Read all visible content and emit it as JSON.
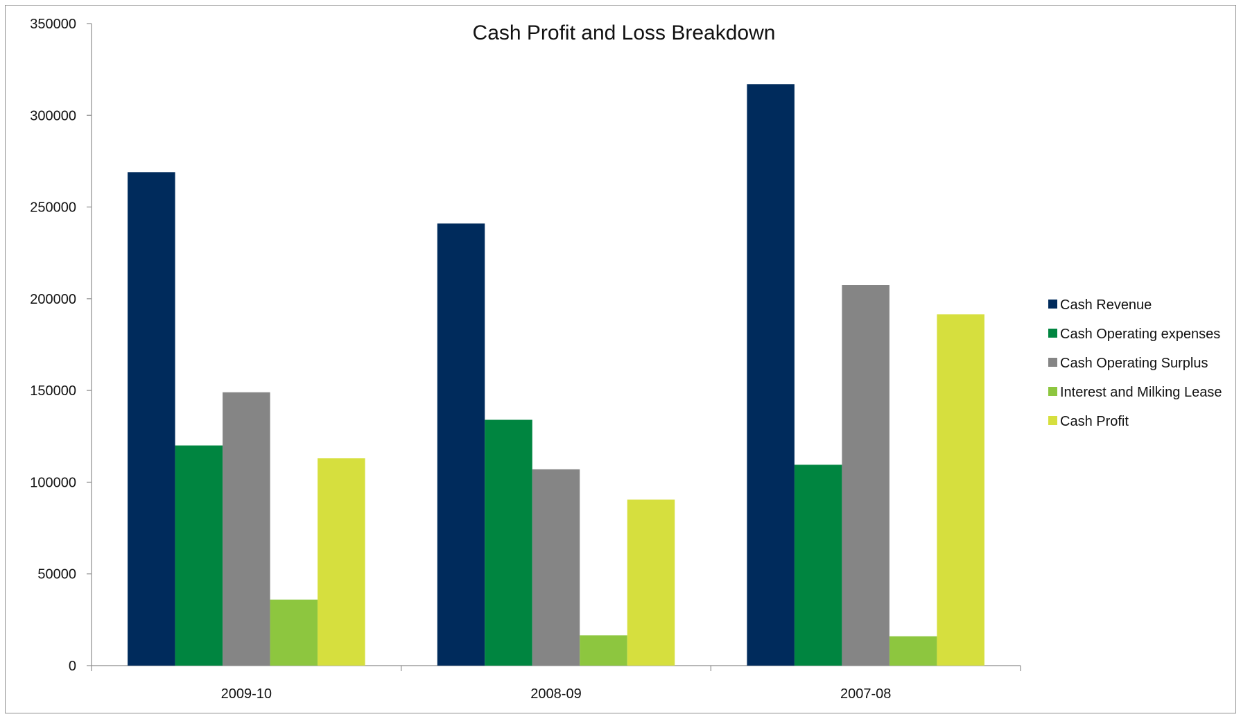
{
  "chart_data": {
    "type": "bar",
    "title": "Cash Profit and Loss Breakdown",
    "xlabel": "",
    "ylabel": "",
    "categories": [
      "2009-10",
      "2008-09",
      "2007-08"
    ],
    "ylim": [
      0,
      350000
    ],
    "yticks": [
      0,
      50000,
      100000,
      150000,
      200000,
      250000,
      300000,
      350000
    ],
    "grid": false,
    "legend_position": "right",
    "series": [
      {
        "name": "Cash Revenue",
        "color": "#002b5c",
        "values": [
          269000,
          241000,
          317000
        ]
      },
      {
        "name": "Cash Operating expenses",
        "color": "#008540",
        "values": [
          120000,
          134000,
          109500
        ]
      },
      {
        "name": "Cash Operating Surplus",
        "color": "#858585",
        "values": [
          149000,
          107000,
          207500
        ]
      },
      {
        "name": "Interest and Milking Lease",
        "color": "#8dc63f",
        "values": [
          36000,
          16500,
          16000
        ]
      },
      {
        "name": "Cash Profit",
        "color": "#d6df3e",
        "values": [
          113000,
          90500,
          191500
        ]
      }
    ]
  }
}
